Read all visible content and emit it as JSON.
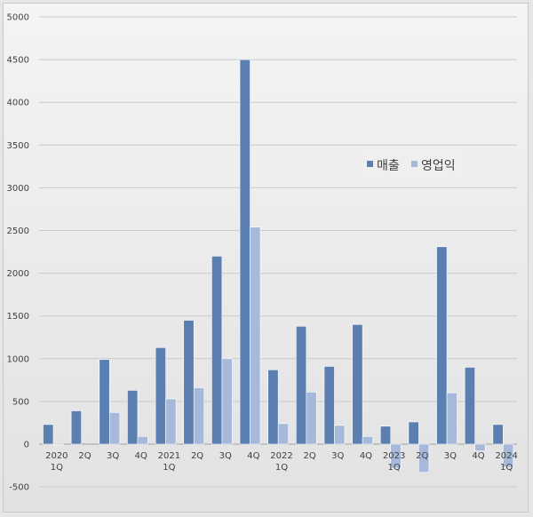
{
  "chart_data": {
    "type": "bar",
    "title": "",
    "xlabel": "",
    "ylabel": "",
    "ylim": [
      -500,
      5000
    ],
    "yticks": [
      -500,
      0,
      500,
      1000,
      1500,
      2000,
      2500,
      3000,
      3500,
      4000,
      4500,
      5000
    ],
    "grid": true,
    "legend_position": "right",
    "categories": [
      [
        "2020",
        "1Q"
      ],
      [
        "2Q"
      ],
      [
        "3Q"
      ],
      [
        "4Q"
      ],
      [
        "2021",
        "1Q"
      ],
      [
        "2Q"
      ],
      [
        "3Q"
      ],
      [
        "4Q"
      ],
      [
        "2022",
        "1Q"
      ],
      [
        "2Q"
      ],
      [
        "3Q"
      ],
      [
        "4Q"
      ],
      [
        "2023",
        "1Q"
      ],
      [
        "2Q"
      ],
      [
        "3Q"
      ],
      [
        "4Q"
      ],
      [
        "2024",
        "1Q"
      ]
    ],
    "series": [
      {
        "name": "매출",
        "color": "#5b7fb0",
        "values": [
          230,
          390,
          990,
          630,
          1130,
          1450,
          2200,
          4500,
          870,
          1380,
          910,
          1400,
          210,
          260,
          2310,
          900,
          230
        ]
      },
      {
        "name": "영업익",
        "color": "#a6b9da",
        "values": [
          -10,
          0,
          370,
          90,
          530,
          660,
          1000,
          2540,
          240,
          610,
          220,
          90,
          -280,
          -330,
          600,
          -80,
          -270
        ]
      }
    ],
    "negative_tick_color": "#ff0000"
  }
}
